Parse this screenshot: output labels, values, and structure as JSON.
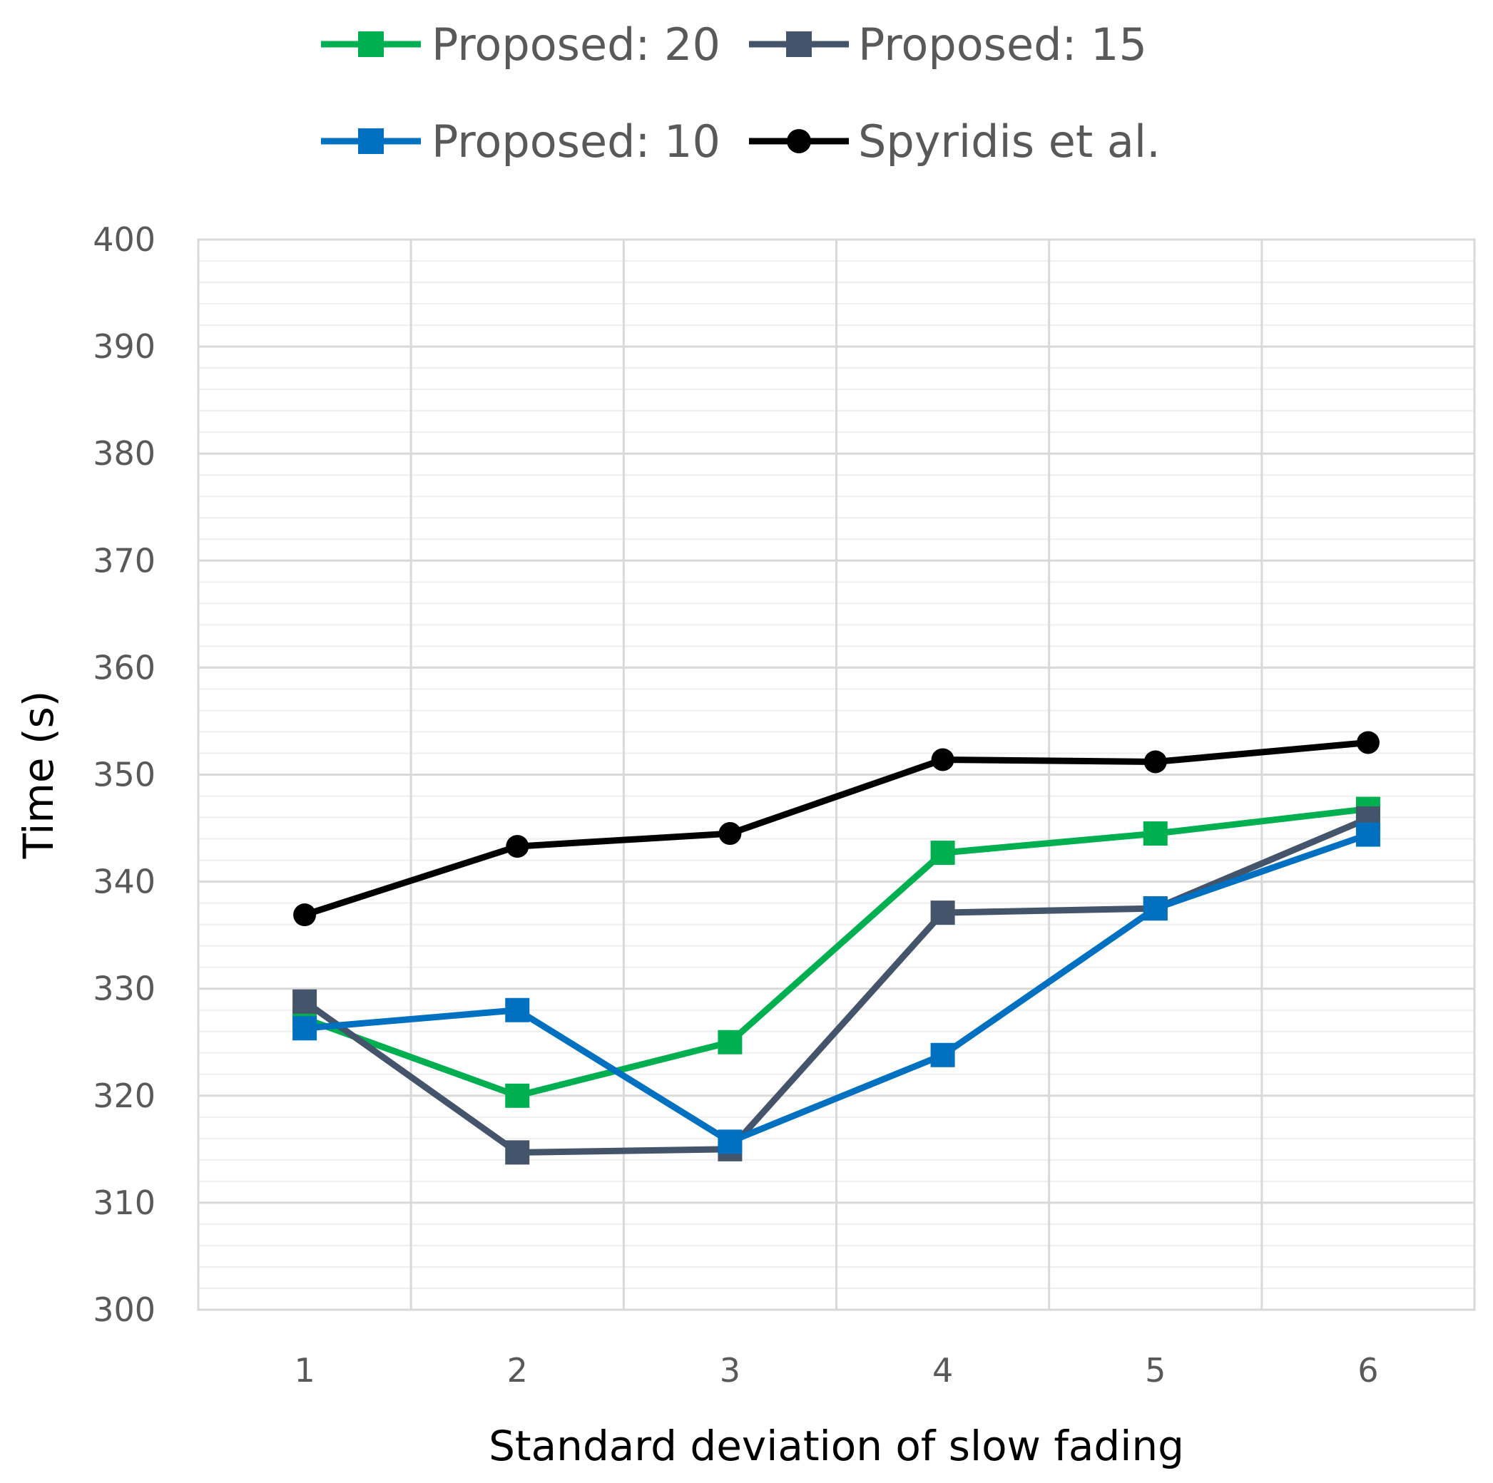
{
  "chart_data": {
    "type": "line",
    "title": "",
    "xlabel": "Standard deviation of slow fading",
    "ylabel": "Time (s)",
    "x": [
      1,
      2,
      3,
      4,
      5,
      6
    ],
    "x_tick_labels": [
      "1",
      "2",
      "3",
      "4",
      "5",
      "6"
    ],
    "ylim": [
      300,
      400
    ],
    "y_ticks": [
      300,
      310,
      320,
      330,
      340,
      350,
      360,
      370,
      380,
      390,
      400
    ],
    "y_tick_labels": [
      "300",
      "310",
      "320",
      "330",
      "340",
      "350",
      "360",
      "370",
      "380",
      "390",
      "400"
    ],
    "y_minor_step": 2,
    "grid": true,
    "legend_position": "top",
    "series": [
      {
        "name": "Proposed: 20",
        "color": "#00b050",
        "marker": "square",
        "values": [
          327.2,
          320,
          325,
          342.7,
          344.5,
          346.8
        ]
      },
      {
        "name": "Proposed: 15",
        "color": "#44546a",
        "marker": "square",
        "values": [
          328.8,
          314.7,
          315,
          337.1,
          337.5,
          345.9
        ]
      },
      {
        "name": "Proposed: 10",
        "color": "#0070c0",
        "marker": "square",
        "values": [
          326.3,
          328,
          315.7,
          323.8,
          337.5,
          344.4
        ]
      },
      {
        "name": "Spyridis et al.",
        "color": "#000000",
        "marker": "circle",
        "values": [
          336.9,
          343.3,
          344.5,
          351.4,
          351.2,
          353
        ]
      }
    ]
  }
}
